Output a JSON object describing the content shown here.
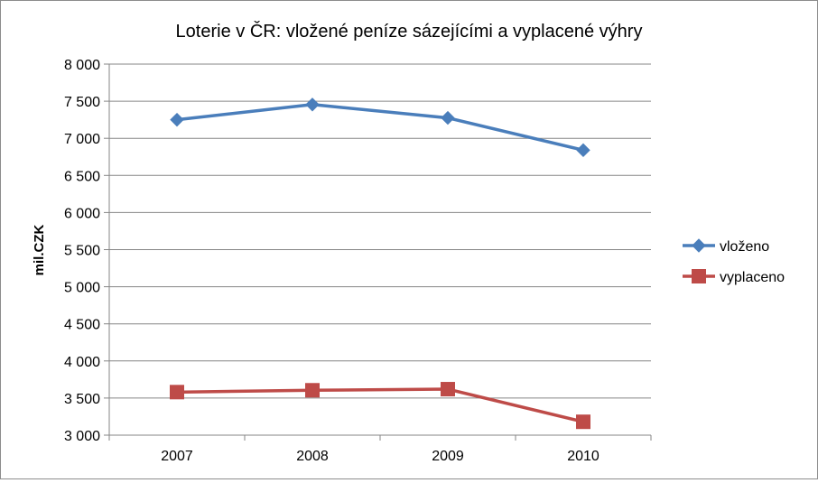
{
  "chart_data": {
    "type": "line",
    "title": "Loterie v ČR: vložené peníze sázejícími a vyplacené výhry",
    "xlabel": "",
    "ylabel": "mil.CZK",
    "categories": [
      "2007",
      "2008",
      "2009",
      "2010"
    ],
    "ylim": [
      3000,
      8000
    ],
    "yticks": [
      3000,
      3500,
      4000,
      4500,
      5000,
      5500,
      6000,
      6500,
      7000,
      7500,
      8000
    ],
    "ytick_labels": [
      "3 000",
      "3 500",
      "4 000",
      "4 500",
      "5 000",
      "5 500",
      "6 000",
      "6 500",
      "7 000",
      "7 500",
      "8 000"
    ],
    "grid": true,
    "legend_position": "right",
    "series": [
      {
        "name": "vloženo",
        "values": [
          7250,
          7455,
          7275,
          6840
        ],
        "color": "#4a7ebb",
        "marker": "diamond"
      },
      {
        "name": "vyplaceno",
        "values": [
          3580,
          3605,
          3620,
          3180
        ],
        "color": "#be4b48",
        "marker": "square"
      }
    ]
  }
}
